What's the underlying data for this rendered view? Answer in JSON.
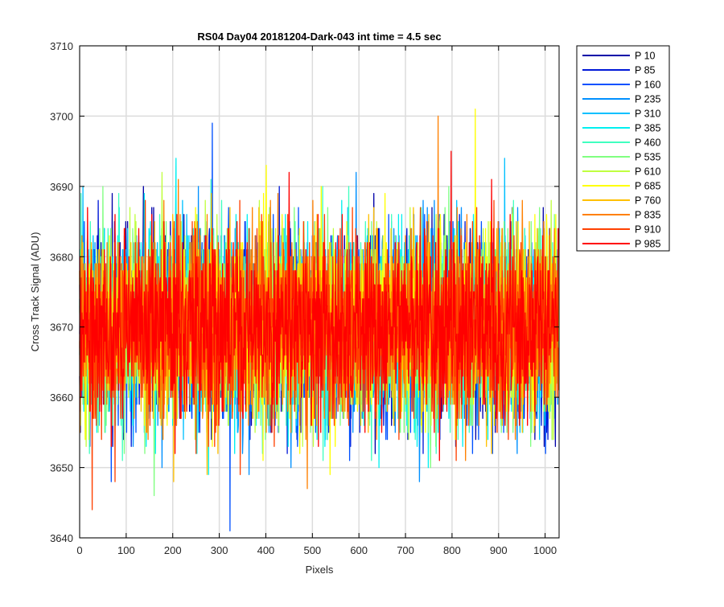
{
  "chart_data": {
    "type": "line",
    "title": "RS04 Day04 20181204-Dark-043 int time = 4.5 sec",
    "xlabel": "Pixels",
    "ylabel": "Cross Track Signal (ADU)",
    "xlim": [
      0,
      1030
    ],
    "ylim": [
      3640,
      3710
    ],
    "xticks": [
      0,
      100,
      200,
      300,
      400,
      500,
      600,
      700,
      800,
      900,
      1000
    ],
    "yticks": [
      3640,
      3650,
      3660,
      3670,
      3680,
      3690,
      3700,
      3710
    ],
    "grid": true,
    "legend_position": "outside-top-right",
    "x_points": 1030,
    "noise_mean": 3670,
    "noise_sd": 6.5,
    "series": [
      {
        "name": "P 10",
        "color": "#0000a8"
      },
      {
        "name": "P 85",
        "color": "#0018d8"
      },
      {
        "name": "P 160",
        "color": "#0050ff"
      },
      {
        "name": "P 235",
        "color": "#0090ff"
      },
      {
        "name": "P 310",
        "color": "#00c0ff"
      },
      {
        "name": "P 385",
        "color": "#00f0f0"
      },
      {
        "name": "P 460",
        "color": "#40ffc0"
      },
      {
        "name": "P 535",
        "color": "#80ff80"
      },
      {
        "name": "P 610",
        "color": "#c0ff40"
      },
      {
        "name": "P 685",
        "color": "#ffff00"
      },
      {
        "name": "P 760",
        "color": "#ffc000"
      },
      {
        "name": "P 835",
        "color": "#ff8000"
      },
      {
        "name": "P 910",
        "color": "#ff4000"
      },
      {
        "name": "P 985",
        "color": "#ff0000"
      }
    ],
    "notable_peaks": [
      {
        "series": "P 160",
        "x": 285,
        "y": 3699
      },
      {
        "series": "P 160",
        "x": 323,
        "y": 3641
      },
      {
        "series": "P 685",
        "x": 850,
        "y": 3701
      },
      {
        "series": "P 835",
        "x": 770,
        "y": 3700
      }
    ]
  }
}
